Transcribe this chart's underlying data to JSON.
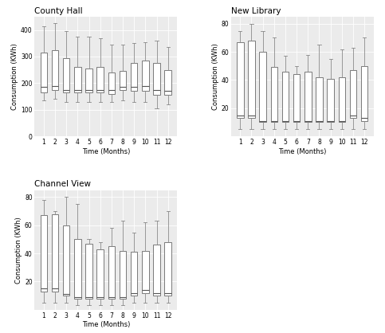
{
  "county_hall": {
    "title": "County Hall",
    "ylabel": "Consumption (KWh)",
    "xlabel": "Time (Months)",
    "ylim": [
      0,
      450
    ],
    "yticks": [
      0,
      100,
      200,
      300,
      400
    ],
    "boxes": [
      {
        "q1": 165,
        "med": 185,
        "q3": 315,
        "whislo": 135,
        "whishi": 415
      },
      {
        "q1": 175,
        "med": 190,
        "q3": 325,
        "whislo": 140,
        "whishi": 425
      },
      {
        "q1": 165,
        "med": 175,
        "q3": 295,
        "whislo": 130,
        "whishi": 395
      },
      {
        "q1": 165,
        "med": 175,
        "q3": 260,
        "whislo": 130,
        "whishi": 375
      },
      {
        "q1": 165,
        "med": 175,
        "q3": 255,
        "whislo": 130,
        "whishi": 375
      },
      {
        "q1": 165,
        "med": 175,
        "q3": 260,
        "whislo": 130,
        "whishi": 370
      },
      {
        "q1": 160,
        "med": 175,
        "q3": 240,
        "whislo": 128,
        "whishi": 345
      },
      {
        "q1": 175,
        "med": 185,
        "q3": 245,
        "whislo": 135,
        "whishi": 345
      },
      {
        "q1": 170,
        "med": 185,
        "q3": 275,
        "whislo": 130,
        "whishi": 350
      },
      {
        "q1": 170,
        "med": 190,
        "q3": 285,
        "whislo": 130,
        "whishi": 355
      },
      {
        "q1": 155,
        "med": 175,
        "q3": 275,
        "whislo": 105,
        "whishi": 360
      },
      {
        "q1": 155,
        "med": 170,
        "q3": 250,
        "whislo": 120,
        "whishi": 335
      }
    ]
  },
  "new_library": {
    "title": "New Library",
    "ylabel": "Consumption (KWh)",
    "xlabel": "Time (Months)",
    "ylim": [
      0,
      85
    ],
    "yticks": [
      20,
      40,
      60,
      80
    ],
    "boxes": [
      {
        "q1": 13,
        "med": 15,
        "q3": 67,
        "whislo": 5,
        "whishi": 75
      },
      {
        "q1": 13,
        "med": 15,
        "q3": 68,
        "whislo": 5,
        "whishi": 80
      },
      {
        "q1": 10,
        "med": 11,
        "q3": 60,
        "whislo": 5,
        "whishi": 75
      },
      {
        "q1": 10,
        "med": 11,
        "q3": 49,
        "whislo": 5,
        "whishi": 70
      },
      {
        "q1": 10,
        "med": 11,
        "q3": 46,
        "whislo": 5,
        "whishi": 57
      },
      {
        "q1": 10,
        "med": 11,
        "q3": 44,
        "whislo": 5,
        "whishi": 50
      },
      {
        "q1": 10,
        "med": 11,
        "q3": 46,
        "whislo": 5,
        "whishi": 58
      },
      {
        "q1": 10,
        "med": 11,
        "q3": 42,
        "whislo": 5,
        "whishi": 65
      },
      {
        "q1": 10,
        "med": 11,
        "q3": 41,
        "whislo": 5,
        "whishi": 55
      },
      {
        "q1": 10,
        "med": 11,
        "q3": 42,
        "whislo": 5,
        "whishi": 62
      },
      {
        "q1": 13,
        "med": 15,
        "q3": 47,
        "whislo": 5,
        "whishi": 63
      },
      {
        "q1": 11,
        "med": 13,
        "q3": 50,
        "whislo": 5,
        "whishi": 70
      }
    ]
  },
  "channel_view": {
    "title": "Channel View",
    "ylabel": "Consumption (KWh)",
    "xlabel": "Time (Months)",
    "ylim": [
      0,
      85
    ],
    "yticks": [
      20,
      40,
      60,
      80
    ],
    "boxes": [
      {
        "q1": 13,
        "med": 15,
        "q3": 67,
        "whislo": 5,
        "whishi": 78
      },
      {
        "q1": 13,
        "med": 15,
        "q3": 68,
        "whislo": 5,
        "whishi": 70
      },
      {
        "q1": 10,
        "med": 11,
        "q3": 60,
        "whislo": 5,
        "whishi": 80
      },
      {
        "q1": 8,
        "med": 9,
        "q3": 50,
        "whislo": 3,
        "whishi": 75
      },
      {
        "q1": 8,
        "med": 9,
        "q3": 47,
        "whislo": 3,
        "whishi": 50
      },
      {
        "q1": 8,
        "med": 9,
        "q3": 43,
        "whislo": 3,
        "whishi": 48
      },
      {
        "q1": 8,
        "med": 9,
        "q3": 45,
        "whislo": 3,
        "whishi": 58
      },
      {
        "q1": 8,
        "med": 9,
        "q3": 42,
        "whislo": 3,
        "whishi": 63
      },
      {
        "q1": 10,
        "med": 12,
        "q3": 41,
        "whislo": 5,
        "whishi": 55
      },
      {
        "q1": 12,
        "med": 14,
        "q3": 42,
        "whislo": 5,
        "whishi": 62
      },
      {
        "q1": 10,
        "med": 12,
        "q3": 46,
        "whislo": 5,
        "whishi": 63
      },
      {
        "q1": 10,
        "med": 12,
        "q3": 48,
        "whislo": 5,
        "whishi": 70
      }
    ]
  },
  "bg_color": "#ebebeb",
  "box_facecolor": "white",
  "box_edgecolor": "#666666",
  "median_color": "#555555",
  "whisker_color": "#888888",
  "grid_color": "white",
  "title_fontsize": 7.5,
  "label_fontsize": 6.0,
  "tick_fontsize": 5.5
}
